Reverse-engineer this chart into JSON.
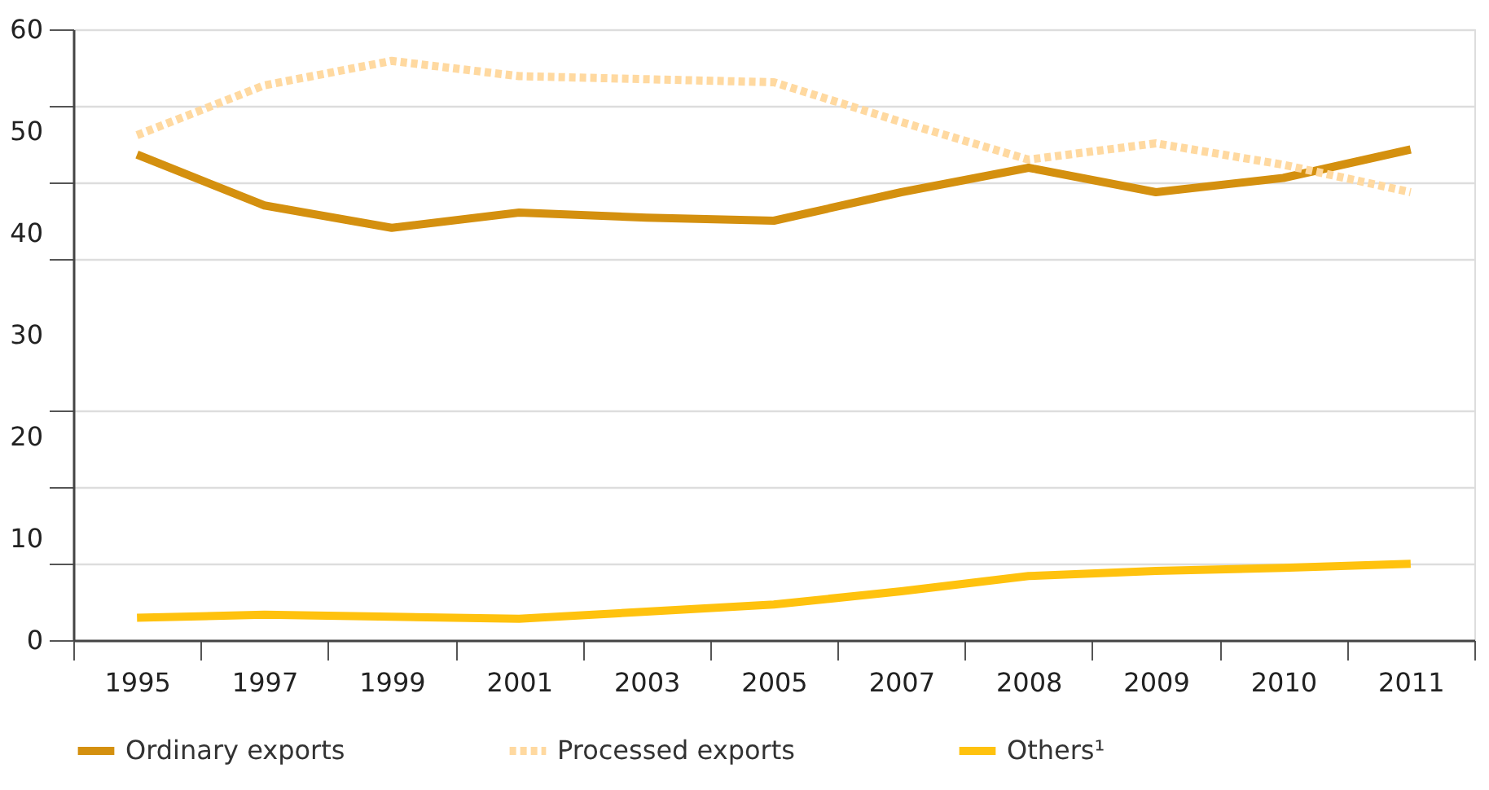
{
  "chart_data": {
    "type": "line",
    "categories": [
      "1995",
      "1997",
      "1999",
      "2001",
      "2003",
      "2005",
      "2007",
      "2008",
      "2009",
      "2010",
      "2011"
    ],
    "series": [
      {
        "name": "Ordinary exports",
        "color": "#d4900f",
        "line_style": "solid",
        "values": [
          47.7,
          42.7,
          40.5,
          42.0,
          41.5,
          41.2,
          44.0,
          46.4,
          44.0,
          45.4,
          48.2
        ]
      },
      {
        "name": "Processed exports",
        "color": "#ffd9a0",
        "line_style": "dotted",
        "values": [
          49.6,
          54.5,
          56.9,
          55.4,
          55.1,
          54.8,
          50.9,
          47.2,
          48.8,
          46.7,
          44.0
        ]
      },
      {
        "name": "Others¹",
        "color": "#ffc20e",
        "line_style": "solid",
        "values": [
          2.2,
          2.5,
          2.3,
          2.1,
          2.8,
          3.5,
          4.8,
          6.3,
          6.8,
          7.1,
          7.5
        ]
      }
    ],
    "ylim": [
      0,
      60
    ],
    "yticks": [
      0,
      {
        "value": 7.5,
        "label": null
      },
      10,
      {
        "value": 15,
        "label": null
      },
      20,
      {
        "value": 22.5,
        "label": null
      },
      30,
      {
        "value": 37.5,
        "label": null
      },
      40,
      {
        "value": 45,
        "label": null
      },
      50,
      {
        "value": 52.5,
        "label": null
      },
      60
    ],
    "grid": "y",
    "legend": "bottom",
    "marker": "none"
  }
}
